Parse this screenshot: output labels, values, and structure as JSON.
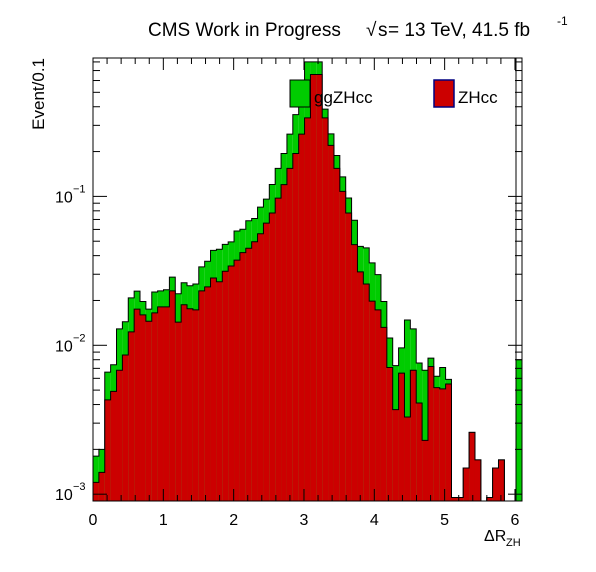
{
  "chart_data": {
    "type": "bar",
    "stacked": true,
    "title": "CMS Work in Progress",
    "energy_label": "s",
    "energy_value": " = 13 TeV, 41.5 fb",
    "lumi_exponent": "-1",
    "xlabel_main": "ΔR",
    "xlabel_sub": "ZH",
    "ylabel": "Event/0.1",
    "xlim": [
      0,
      6.1
    ],
    "ylim": [
      0.0009,
      0.85
    ],
    "yscale": "log",
    "bin_width": 0.1,
    "x_ticks": [
      "0",
      "1",
      "2",
      "3",
      "4",
      "5",
      "6"
    ],
    "x_tick_values": [
      0,
      1,
      2,
      3,
      4,
      5,
      6
    ],
    "y_ticks": [
      {
        "value": 0.1,
        "base": "10",
        "exp": "−1"
      },
      {
        "value": 0.01,
        "base": "10",
        "exp": "−2"
      },
      {
        "value": 0.001,
        "base": "10",
        "exp": "−3"
      }
    ],
    "legend_position": "top-right",
    "colors": {
      "ZHcc": "#cc0000",
      "ggZHcc": "#00cc00"
    },
    "series": [
      {
        "name": "ZHcc",
        "values": [
          0.0012,
          0.0014,
          0.0043,
          0.0049,
          0.0068,
          0.0086,
          0.0123,
          0.0175,
          0.016,
          0.0145,
          0.0165,
          0.0181,
          0.0181,
          0.0232,
          0.0143,
          0.0187,
          0.0176,
          0.0173,
          0.0232,
          0.0247,
          0.0283,
          0.0267,
          0.0314,
          0.0341,
          0.0373,
          0.0419,
          0.0448,
          0.0496,
          0.0561,
          0.0661,
          0.0773,
          0.0974,
          0.1199,
          0.1543,
          0.1943,
          0.2618,
          0.3368,
          0.6583,
          0.6583,
          0.3368,
          0.2199,
          0.1543,
          0.1081,
          0.0774,
          0.0474,
          0.0311,
          0.0258,
          0.0198,
          0.0173,
          0.0132,
          0.0071,
          0.0037,
          0.0065,
          0.0033,
          0.0068,
          0.0041,
          0.0023,
          0.0072,
          0.0052,
          0.0051,
          0.0055,
          0.00095,
          0.00095,
          0.0015,
          0.0026,
          0.0017,
          0.0009,
          0.00095,
          0.0015,
          0.0017,
          0.0009,
          0.0009,
          0.0009
        ],
        "x_start": 0
      },
      {
        "name": "ggZHcc",
        "values": [
          0.0018,
          0.002,
          0.0066,
          0.0074,
          0.0129,
          0.0144,
          0.0208,
          0.0231,
          0.0197,
          0.0175,
          0.0228,
          0.0232,
          0.0236,
          0.0287,
          0.0222,
          0.0263,
          0.0251,
          0.0258,
          0.0336,
          0.0367,
          0.0434,
          0.0442,
          0.0476,
          0.0495,
          0.0586,
          0.0601,
          0.0686,
          0.0711,
          0.0847,
          0.0958,
          0.1203,
          0.1543,
          0.1943,
          0.2618,
          0.3543,
          0.4221,
          0.8,
          0.8,
          0.8,
          0.3857,
          0.2628,
          0.1883,
          0.1351,
          0.0975,
          0.0691,
          0.0462,
          0.0451,
          0.0358,
          0.0298,
          0.0197,
          0.0112,
          0.0073,
          0.0096,
          0.0148,
          0.0129,
          0.0076,
          0.0068,
          0.0082,
          0.0062,
          0.0071,
          0.0059,
          0.00095,
          0.00095,
          0.0015,
          0.0026,
          0.0017,
          0.0009,
          0.00095,
          0.0015,
          0.0017,
          0.0009,
          0.0009,
          0.0009
        ],
        "x_start": 0
      }
    ],
    "overflow_last_bin": {
      "ZHcc": 0.0009,
      "ggZHcc": 0.008
    }
  }
}
